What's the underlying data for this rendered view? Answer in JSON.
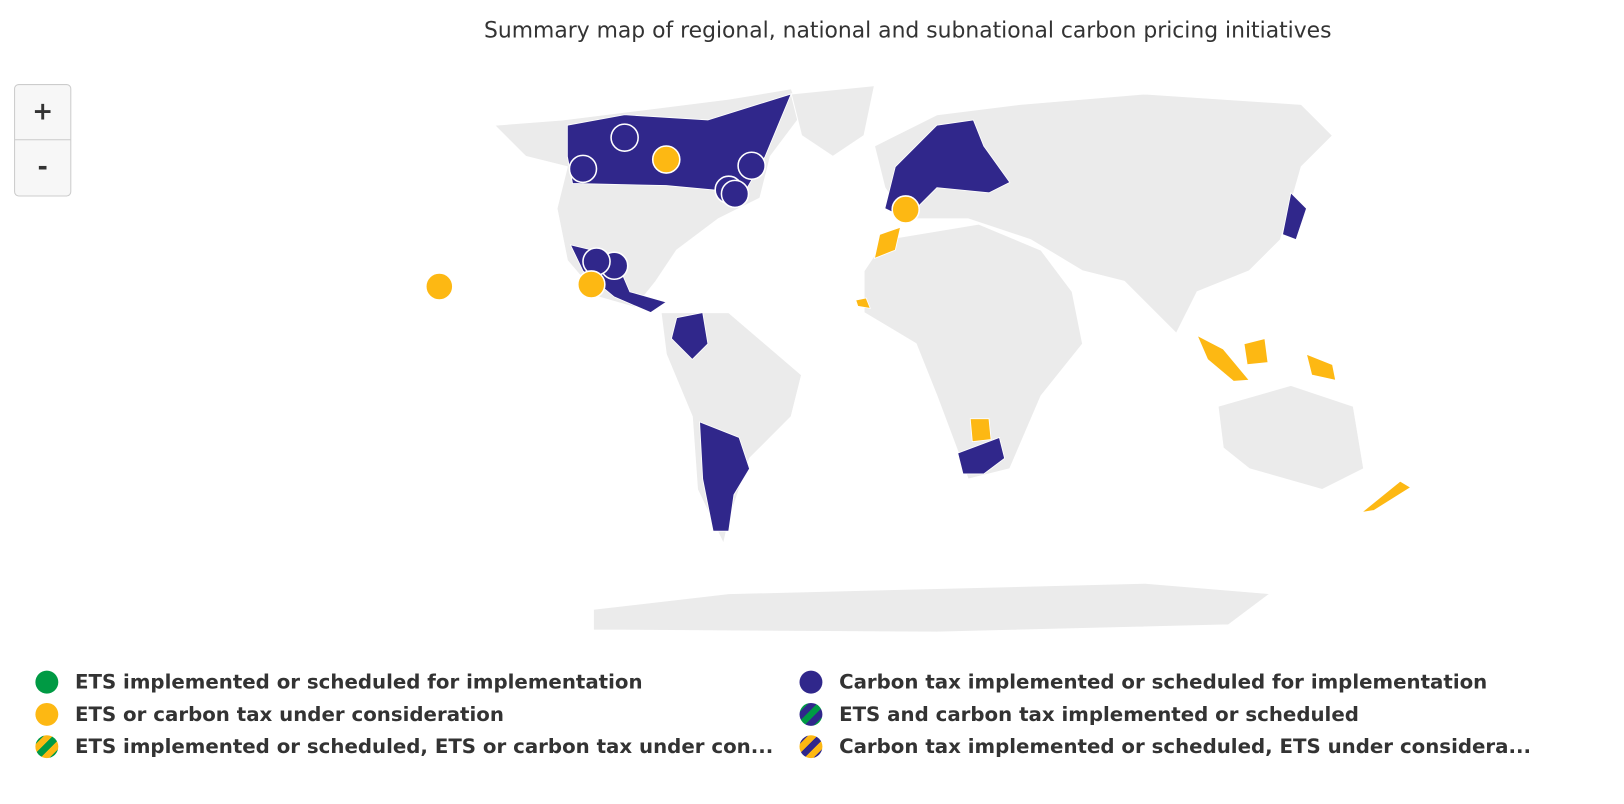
{
  "title": "Summary map of regional, national and subnational carbon pricing initiatives",
  "zoom": {
    "in": "+",
    "out": "-"
  },
  "legend": [
    {
      "label": "ETS implemented or scheduled for implementation",
      "colors": [
        "#009a44"
      ]
    },
    {
      "label": "ETS or carbon tax under consideration",
      "colors": [
        "#fdb813"
      ]
    },
    {
      "label": "ETS implemented or scheduled, ETS or carbon tax under con...",
      "colors": [
        "#009a44",
        "#fdb813"
      ]
    },
    {
      "label": "Carbon tax implemented or scheduled for implementation",
      "colors": [
        "#30278b"
      ]
    },
    {
      "label": "ETS and carbon tax implemented or scheduled",
      "colors": [
        "#009a44",
        "#30278b"
      ]
    },
    {
      "label": "Carbon tax implemented or scheduled, ETS under considera...",
      "colors": [
        "#30278b",
        "#fdb813"
      ]
    }
  ]
}
